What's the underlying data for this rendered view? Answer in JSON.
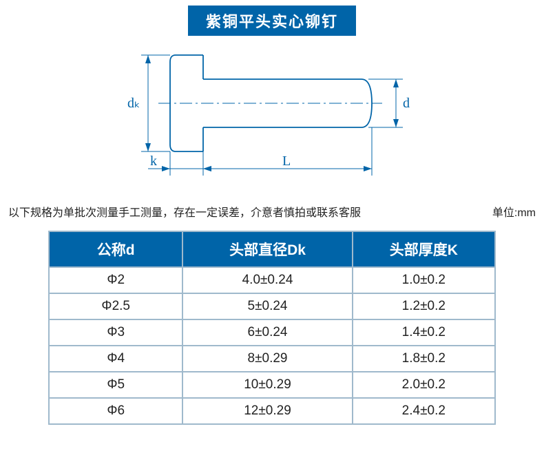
{
  "title": "紫铜平头实心铆钉",
  "diagram": {
    "labels": {
      "dk": "dₖ",
      "k": "k",
      "L": "L",
      "d": "d"
    },
    "stroke_color": "#0064a8",
    "stroke_width": 1.8
  },
  "note": "以下规格为单批次测量手工测量，存在一定误差，介意者慎拍或联系客服",
  "unit": "单位:mm",
  "table": {
    "header_bg": "#0064a8",
    "header_fg": "#ffffff",
    "border_color": "#9fb9cc",
    "cell_bg": "#ffffff",
    "cell_fg": "#222222",
    "header_fontsize": 21,
    "cell_fontsize": 19,
    "columns": [
      "公称d",
      "头部直径Dk",
      "头部厚度K"
    ],
    "rows": [
      [
        "Φ2",
        "4.0±0.24",
        "1.0±0.2"
      ],
      [
        "Φ2.5",
        "5±0.24",
        "1.2±0.2"
      ],
      [
        "Φ3",
        "6±0.24",
        "1.4±0.2"
      ],
      [
        "Φ4",
        "8±0.29",
        "1.8±0.2"
      ],
      [
        "Φ5",
        "10±0.29",
        "2.0±0.2"
      ],
      [
        "Φ6",
        "12±0.29",
        "2.4±0.2"
      ]
    ]
  }
}
